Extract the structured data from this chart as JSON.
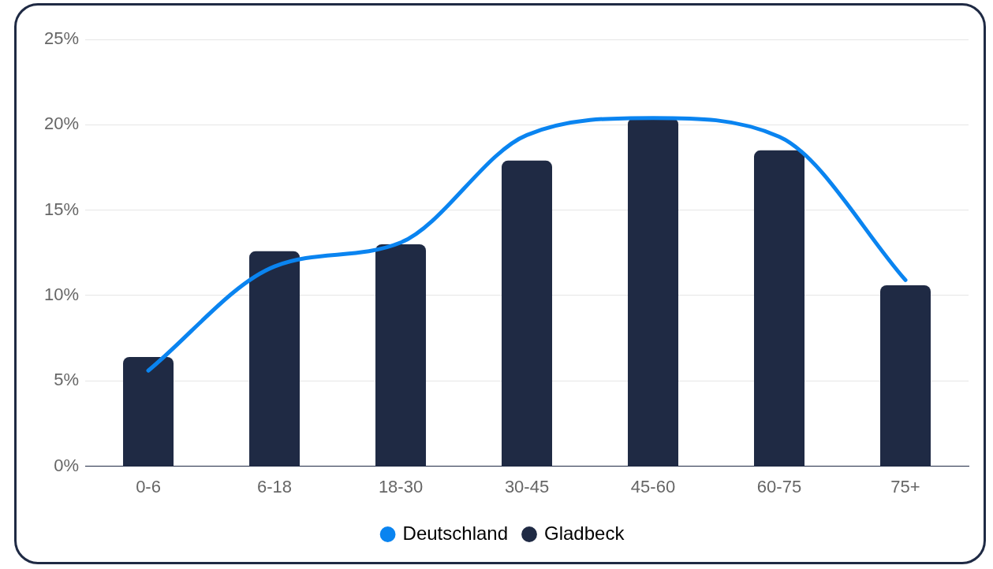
{
  "chart_data": {
    "type": "bar",
    "categories": [
      "0-6",
      "6-18",
      "18-30",
      "30-45",
      "45-60",
      "60-75",
      "75+"
    ],
    "series": [
      {
        "name": "Deutschland",
        "type": "line",
        "color": "#0a84f0",
        "values": [
          5.6,
          11.7,
          13.1,
          19.4,
          20.4,
          19.3,
          10.9
        ]
      },
      {
        "name": "Gladbeck",
        "color": "#1f2a44",
        "values": [
          6.4,
          12.6,
          13.0,
          17.9,
          20.4,
          18.5,
          10.6
        ]
      }
    ],
    "ylim": [
      0,
      25
    ],
    "yticks": [
      {
        "value": 0,
        "label": "0%"
      },
      {
        "value": 5,
        "label": "5%"
      },
      {
        "value": 10,
        "label": "10%"
      },
      {
        "value": 15,
        "label": "15%"
      },
      {
        "value": 20,
        "label": "20%"
      },
      {
        "value": 25,
        "label": "25%"
      }
    ],
    "grid": "y",
    "legend": "bottom",
    "marker": "none"
  }
}
